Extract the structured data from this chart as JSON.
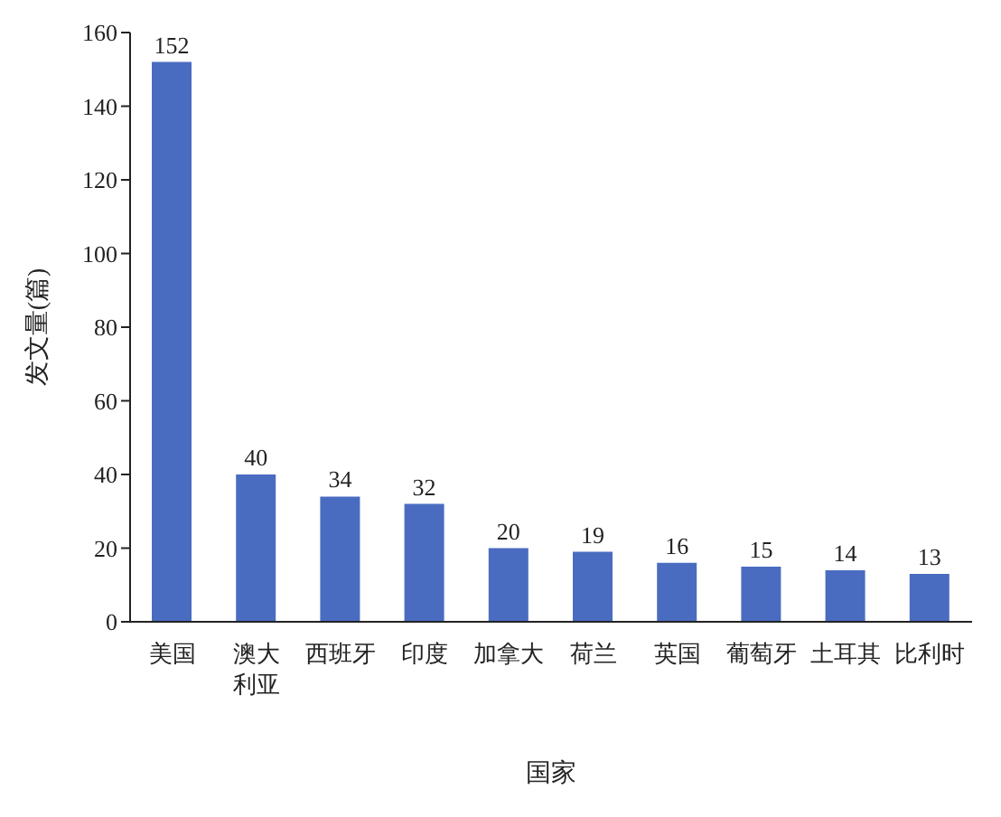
{
  "chart_data": {
    "type": "bar",
    "xlabel": "国家",
    "ylabel": "发文量(篇)",
    "categories": [
      "美国",
      "澳大利亚",
      "西班牙",
      "印度",
      "加拿大",
      "荷兰",
      "英国",
      "葡萄牙",
      "土耳其",
      "比利时"
    ],
    "values": [
      152,
      40,
      34,
      32,
      20,
      19,
      16,
      15,
      14,
      13
    ],
    "color": "#4a6cc0",
    "ylim": [
      0,
      160
    ],
    "yticks": [
      0,
      20,
      40,
      60,
      80,
      100,
      120,
      140,
      160
    ],
    "grid": false,
    "data_labels": true
  }
}
